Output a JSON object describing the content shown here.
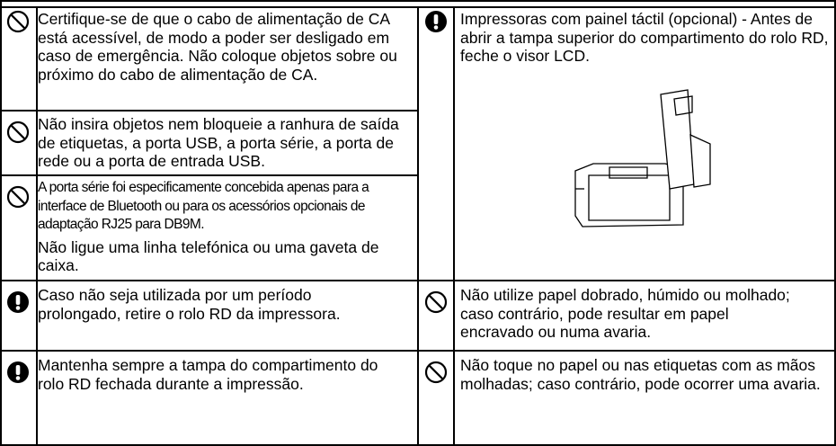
{
  "left": [
    {
      "paragraphs": [
        "Certifique-se de que o cabo de alimentação de CA está acessível, de modo a poder ser desligado em caso de emergência. Não coloque objetos sobre ou próximo do cabo de alimentação de CA."
      ]
    },
    {
      "paragraphs": [
        "Não insira objetos nem bloqueie a ranhura de saída de etiquetas, a porta USB, a porta série, a porta de rede ou a porta de entrada USB."
      ]
    },
    {
      "paragraphs": [
        "A porta série foi especificamente concebida apenas para a interface de Bluetooth ou para os acessórios opcionais de adaptação RJ25 para DB9M.",
        "Não ligue uma linha telefónica ou uma gaveta de caixa."
      ]
    },
    {
      "paragraphs": [
        "Caso não seja utilizada por um período prolongado, retire o rolo RD da impressora."
      ]
    },
    {
      "paragraphs": [
        "Mantenha sempre a tampa do compartimento do rolo RD fechada durante a impressão."
      ]
    }
  ],
  "right": [
    {
      "paragraphs": [
        "Impressoras com painel táctil (opcional) - Antes de abrir a tampa superior do compartimento do rolo RD, feche o visor LCD."
      ]
    },
    {
      "paragraphs": [
        "Não utilize papel dobrado, húmido ou molhado; caso contrário, pode resultar em papel encravado ou numa avaria."
      ]
    },
    {
      "paragraphs": [
        "Não toque no papel ou nas etiquetas com as mãos molhadas; caso contrário, pode ocorrer uma avaria."
      ]
    }
  ]
}
